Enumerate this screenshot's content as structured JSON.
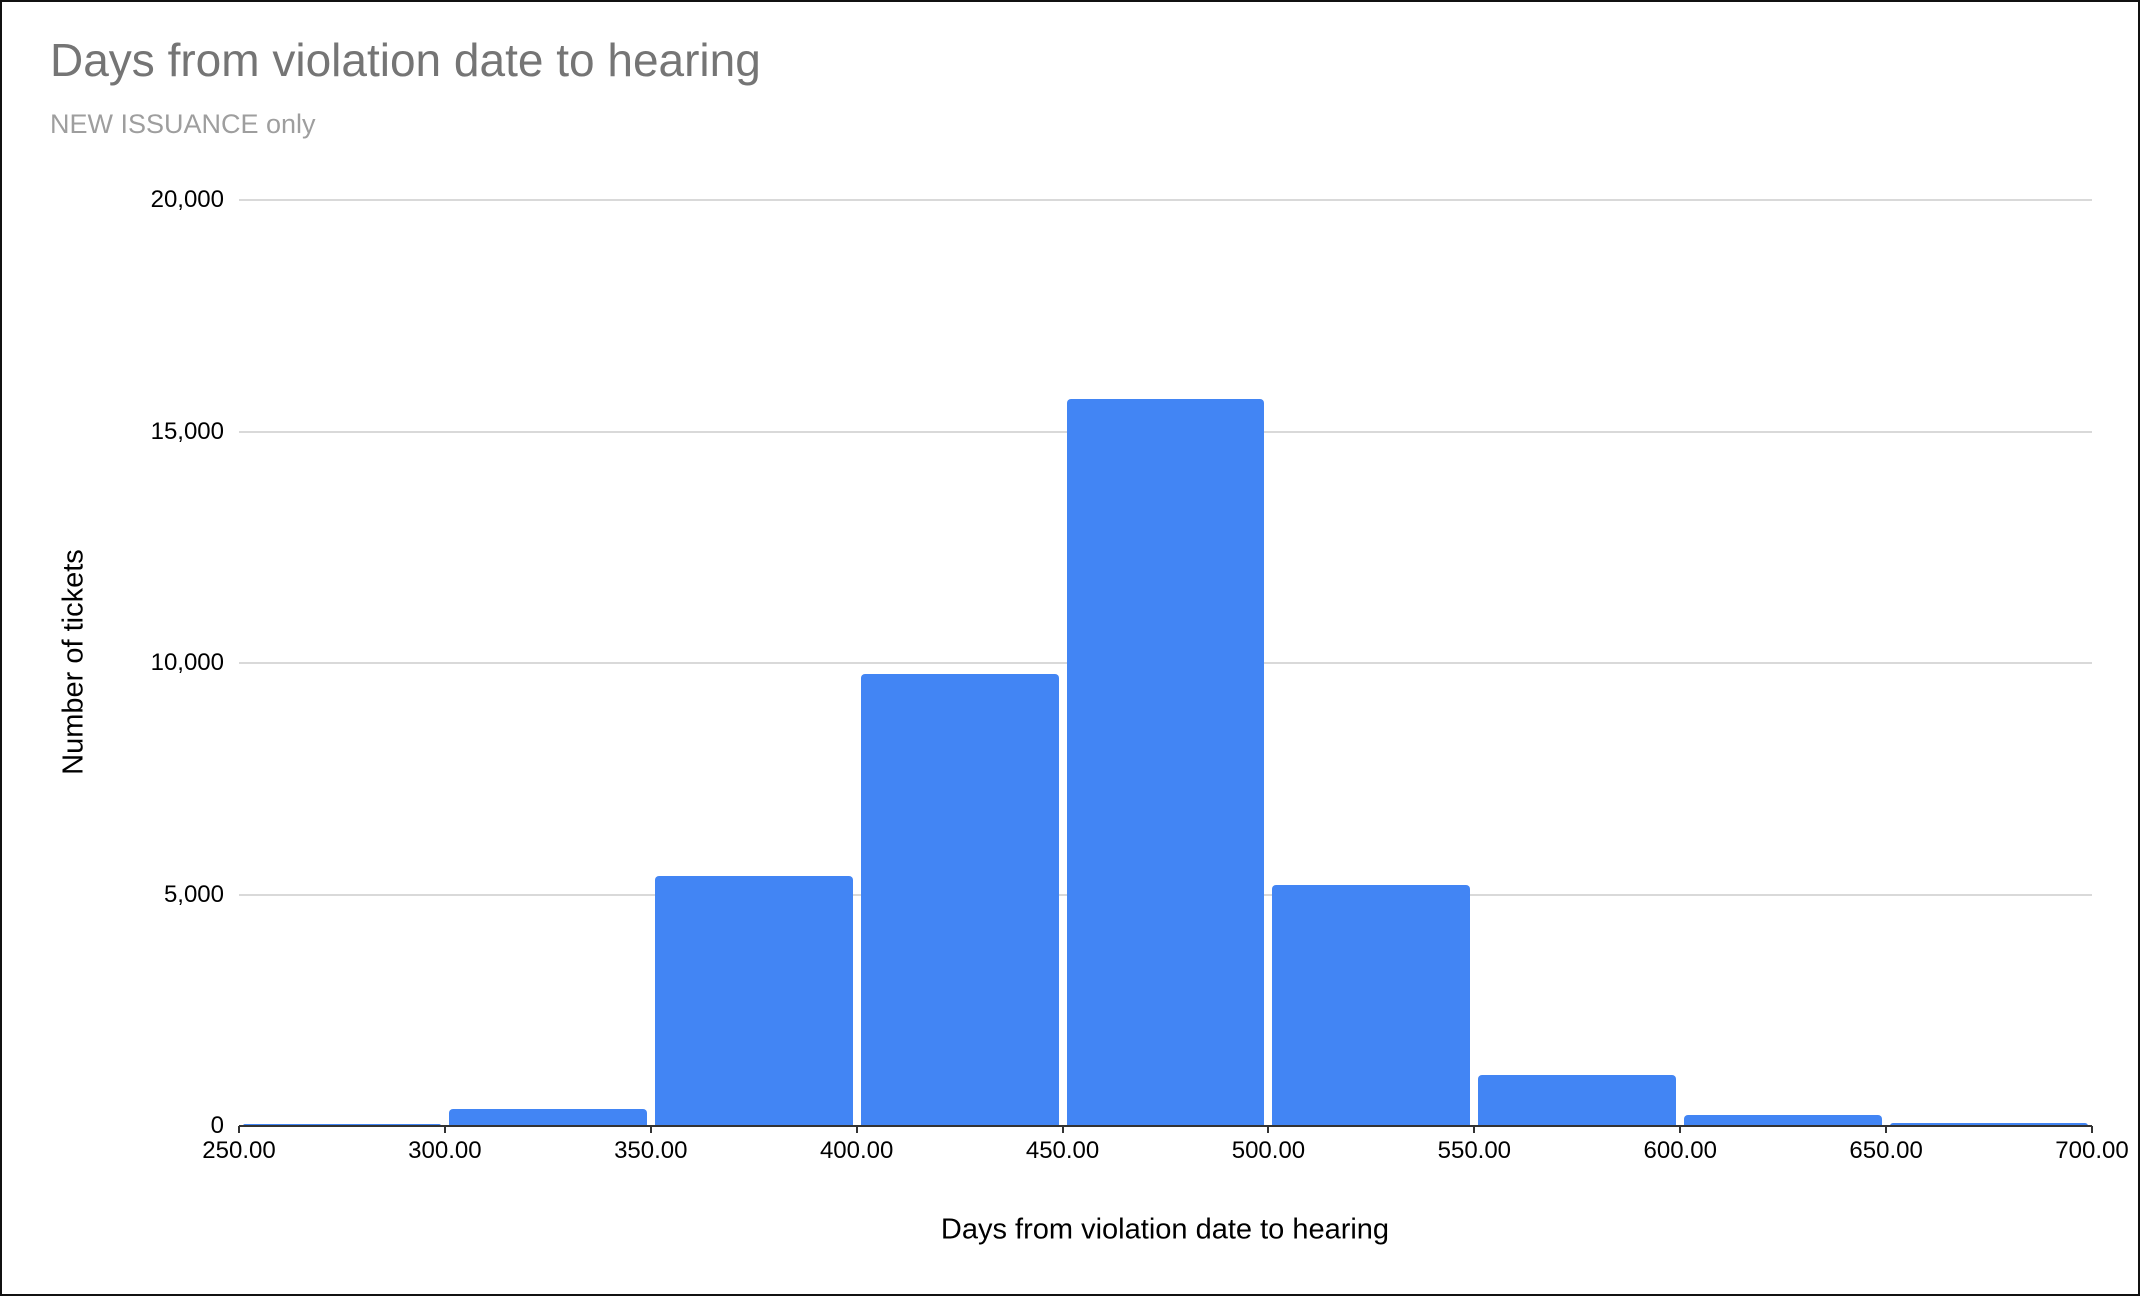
{
  "chart_data": {
    "type": "bar",
    "subtype": "histogram",
    "title": "Days from violation date to hearing",
    "subtitle": "NEW ISSUANCE only",
    "xlabel": "Days from violation date to hearing",
    "ylabel": "Number of tickets",
    "bin_edges": [
      250,
      300,
      350,
      400,
      450,
      500,
      550,
      600,
      650,
      700
    ],
    "x_tick_labels": [
      "250.00",
      "300.00",
      "350.00",
      "400.00",
      "450.00",
      "500.00",
      "550.00",
      "600.00",
      "650.00",
      "700.00"
    ],
    "values": [
      50,
      370,
      5400,
      9770,
      15700,
      5200,
      1100,
      230,
      60
    ],
    "y_ticks": [
      0,
      5000,
      10000,
      15000,
      20000
    ],
    "y_tick_labels": [
      "0",
      "5,000",
      "10,000",
      "15,000",
      "20,000"
    ],
    "ylim": [
      0,
      20000
    ],
    "grid": true,
    "legend_position": "none",
    "bar_color": "#4285f4",
    "gridline_color": "#d9d9d9",
    "axis_color": "#333333",
    "title_color": "#757575",
    "subtitle_color": "#9e9e9e"
  }
}
